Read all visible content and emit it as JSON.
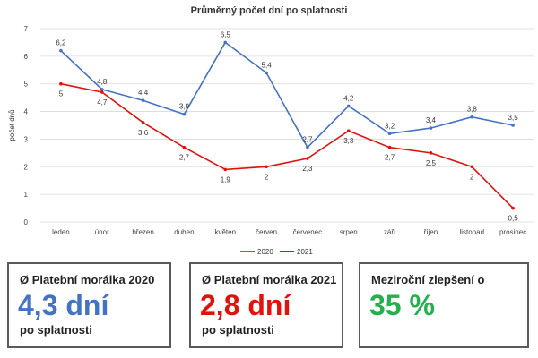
{
  "chart_data": {
    "type": "line",
    "title": "Průměrný počet dní po splatnosti",
    "ylabel": "počet dnů",
    "xlabel": "",
    "categories": [
      "leden",
      "únor",
      "březen",
      "duben",
      "květen",
      "červen",
      "červenec",
      "srpen",
      "září",
      "říjen",
      "listopad",
      "prosinec"
    ],
    "ylim": [
      0,
      7
    ],
    "yticks": [
      0,
      1,
      2,
      3,
      4,
      5,
      6,
      7
    ],
    "grid": true,
    "legend": "bottom",
    "series": [
      {
        "name": "2020",
        "color": "#4472c4",
        "values": [
          6.2,
          4.8,
          4.4,
          3.9,
          6.5,
          5.4,
          2.7,
          4.2,
          3.2,
          3.4,
          3.8,
          3.5
        ],
        "labels": [
          "6,2",
          "4,8",
          "4,4",
          "3,9",
          "6,5",
          "5,4",
          "2,7",
          "4,2",
          "3,2",
          "3,4",
          "3,8",
          "3,5"
        ]
      },
      {
        "name": "2021",
        "color": "#e0120c",
        "values": [
          5,
          4.7,
          3.6,
          2.7,
          1.9,
          2,
          2.3,
          3.3,
          2.7,
          2.5,
          2,
          0.5
        ],
        "labels": [
          "5",
          "4,7",
          "3,6",
          "2,7",
          "1,9",
          "2",
          "2,3",
          "3,3",
          "2,7",
          "2,5",
          "2",
          "0,5"
        ]
      }
    ]
  },
  "cards": [
    {
      "title": "Ø Platební morálka 2020",
      "value": "4,3 dní",
      "subtitle": "po splatnosti",
      "color": "#4472c4"
    },
    {
      "title": "Ø Platební morálka 2021",
      "value": "2,8 dní",
      "subtitle": "po splatnosti",
      "color": "#e0120c"
    },
    {
      "title": "Meziroční zlepšení o",
      "value": "35 %",
      "subtitle": "",
      "color": "#22b14c"
    }
  ]
}
